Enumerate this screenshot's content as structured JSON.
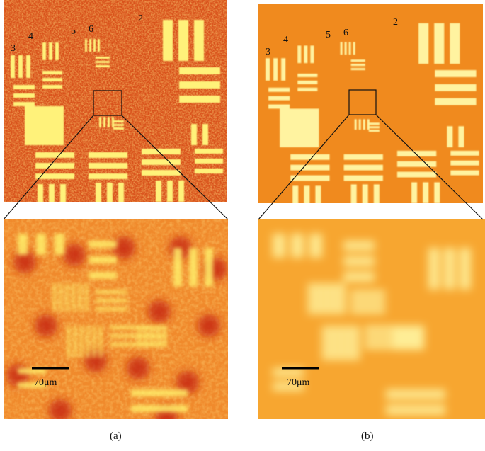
{
  "panels": [
    {
      "label": "(a)",
      "scale_bar": "70μm",
      "group_labels": [
        "2",
        "3",
        "4",
        "5",
        "6"
      ]
    },
    {
      "label": "(b)",
      "scale_bar": "70μm",
      "group_labels": [
        "2",
        "3",
        "4",
        "5",
        "6"
      ]
    }
  ]
}
